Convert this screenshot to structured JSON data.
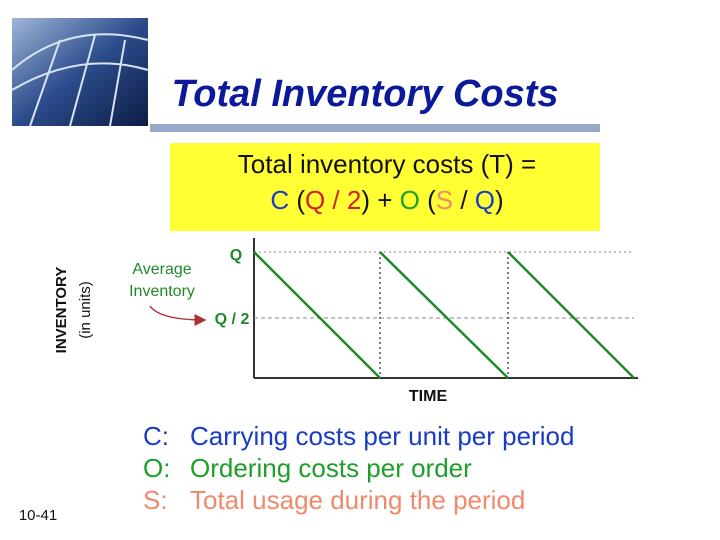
{
  "title": "Total Inventory Costs",
  "formula": {
    "line1": "Total inventory costs (T) =",
    "line2": [
      {
        "text": "C",
        "color": "#1a3cc4"
      },
      {
        "text": " (",
        "color": "#111111"
      },
      {
        "text": "Q / 2",
        "color": "#d62020"
      },
      {
        "text": ") + ",
        "color": "#111111"
      },
      {
        "text": "O",
        "color": "#1f9e2a"
      },
      {
        "text": " (",
        "color": "#111111"
      },
      {
        "text": "S",
        "color": "#f08a6a"
      },
      {
        "text": " / ",
        "color": "#111111"
      },
      {
        "text": "Q",
        "color": "#1a3cc4"
      },
      {
        "text": ")",
        "color": "#111111"
      }
    ]
  },
  "diagram": {
    "y_axis_label": "INVENTORY",
    "y_axis_sublabel": "(in units)",
    "q_label": "Q",
    "half_label": "Q / 2",
    "annotation": [
      "Average",
      "Inventory"
    ],
    "x_axis_label": "TIME"
  },
  "definitions": [
    {
      "symbol": "C:",
      "text": "Carrying costs per unit per period",
      "color": "#1a3cc4"
    },
    {
      "symbol": "O:",
      "text": "Ordering costs per order",
      "color": "#1f9e2a"
    },
    {
      "symbol": "S:",
      "text": "Total usage during the period",
      "color": "#f08a6a"
    }
  ],
  "slide_number": "10-41"
}
